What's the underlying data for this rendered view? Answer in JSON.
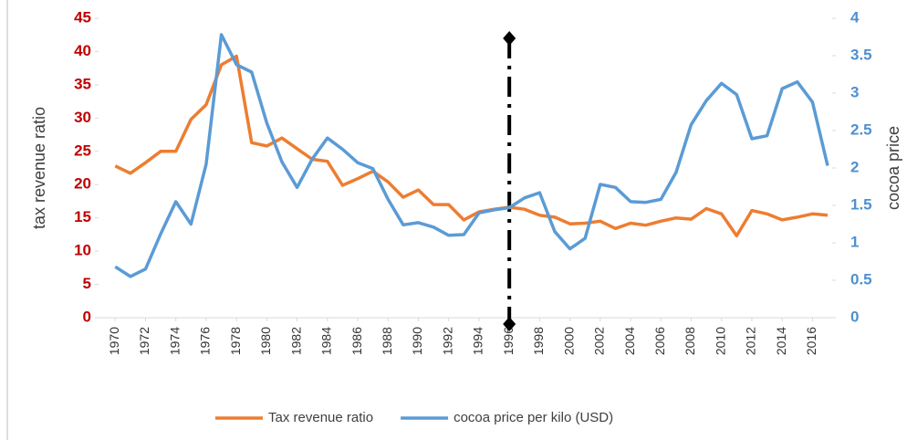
{
  "chart_data": {
    "type": "line",
    "ylabel": "tax revenue ratio",
    "y2label": "cocoa price",
    "x": [
      1970,
      1971,
      1972,
      1973,
      1974,
      1975,
      1976,
      1977,
      1978,
      1979,
      1980,
      1981,
      1982,
      1983,
      1984,
      1985,
      1986,
      1987,
      1988,
      1989,
      1990,
      1991,
      1992,
      1993,
      1994,
      1995,
      1996,
      1997,
      1998,
      1999,
      2000,
      2001,
      2002,
      2003,
      2004,
      2005,
      2006,
      2007,
      2008,
      2009,
      2010,
      2011,
      2012,
      2013,
      2014,
      2015,
      2016,
      2017
    ],
    "xlim": [
      1968.9,
      2017.3
    ],
    "xticks": [
      1970,
      1972,
      1974,
      1976,
      1978,
      1980,
      1982,
      1984,
      1986,
      1988,
      1990,
      1992,
      1994,
      1996,
      1998,
      2000,
      2002,
      2004,
      2006,
      2008,
      2010,
      2012,
      2014,
      2016
    ],
    "ylim": [
      0,
      45
    ],
    "yticks": [
      0,
      5,
      10,
      15,
      20,
      25,
      30,
      35,
      40,
      45
    ],
    "y2lim": [
      0,
      4
    ],
    "y2ticks": [
      0,
      0.5,
      1,
      1.5,
      2,
      2.5,
      3,
      3.5,
      4
    ],
    "reference_line": {
      "x": 1996,
      "color": "#000000"
    },
    "series": [
      {
        "name": "Tax revenue ratio",
        "color": "#ed7d31",
        "values": [
          22.8,
          21.7,
          23.3,
          25,
          25,
          29.8,
          32,
          38,
          39.3,
          26.3,
          25.8,
          27,
          25.4,
          23.8,
          23.5,
          19.9,
          20.9,
          22,
          20.4,
          18.1,
          19.2,
          17,
          17,
          14.7,
          15.9,
          16.3,
          16.6,
          16.3,
          15.4,
          15.1,
          14.1,
          14.2,
          14.5,
          13.4,
          14.2,
          13.9,
          14.5,
          15,
          14.8,
          16.4,
          15.6,
          12.3,
          16.1,
          15.6,
          14.7,
          15.1,
          15.6,
          15.4
        ]
      },
      {
        "name": "cocoa price per kilo (USD)",
        "color": "#5b9bd5",
        "axis": "y2",
        "values": [
          0.68,
          0.55,
          0.65,
          1.12,
          1.55,
          1.25,
          2.05,
          3.78,
          3.38,
          3.28,
          2.6,
          2.08,
          1.74,
          2.12,
          2.4,
          2.25,
          2.07,
          1.99,
          1.58,
          1.24,
          1.27,
          1.21,
          1.1,
          1.11,
          1.4,
          1.44,
          1.47,
          1.6,
          1.67,
          1.15,
          0.92,
          1.06,
          1.78,
          1.74,
          1.55,
          1.54,
          1.58,
          1.94,
          2.58,
          2.9,
          3.13,
          2.98,
          2.39,
          2.43,
          3.06,
          3.15,
          2.88,
          2.03
        ]
      }
    ]
  }
}
